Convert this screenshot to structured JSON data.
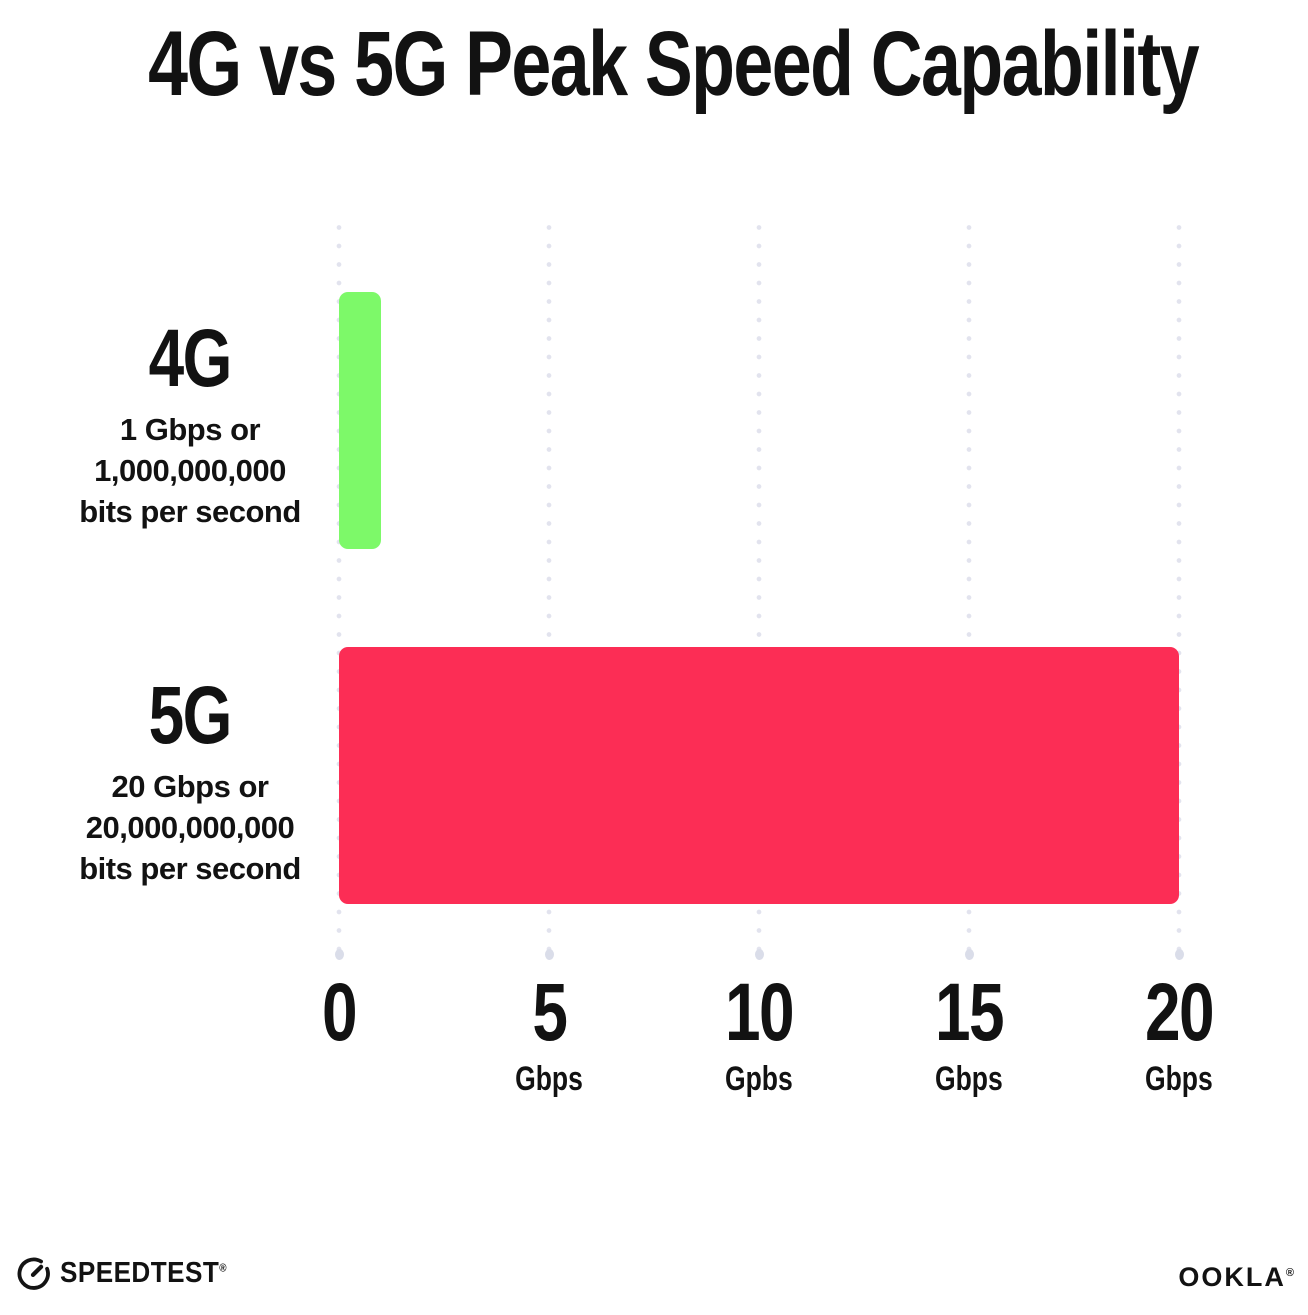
{
  "title": "4G vs 5G Peak Speed Capability",
  "chart_data": {
    "type": "bar",
    "orientation": "horizontal",
    "title": "4G vs 5G Peak Speed Capability",
    "categories": [
      "4G",
      "5G"
    ],
    "values": [
      1,
      20
    ],
    "value_unit": "Gbps",
    "xlim": [
      0,
      20
    ],
    "grid": "dotted vertical gridlines every 5 Gbps",
    "legend": "none",
    "rows": [
      {
        "label": "4G",
        "sublabel_line1": "1 Gbps or",
        "sublabel_line2": "1,000,000,000",
        "sublabel_line3": "bits per second",
        "value": 1,
        "color": "#7DF969"
      },
      {
        "label": "5G",
        "sublabel_line1": "20 Gbps or",
        "sublabel_line2": "20,000,000,000",
        "sublabel_line3": "bits per second",
        "value": 20,
        "color": "#FC2D55"
      }
    ],
    "x_ticks": [
      {
        "value": "0",
        "unit": ""
      },
      {
        "value": "5",
        "unit": "Gbps"
      },
      {
        "value": "10",
        "unit": "Gpbs"
      },
      {
        "value": "15",
        "unit": "Gbps"
      },
      {
        "value": "20",
        "unit": "Gbps"
      }
    ]
  },
  "footer": {
    "speedtest_label": "SPEEDTEST",
    "speedtest_mark": "®",
    "ookla_label": "OOKLA",
    "ookla_mark": "®"
  },
  "colors": {
    "bar_4g": "#7DF969",
    "bar_5g": "#FC2D55",
    "grid_dot": "#E2E3EE",
    "text": "#121212",
    "background": "#FFFFFF"
  }
}
